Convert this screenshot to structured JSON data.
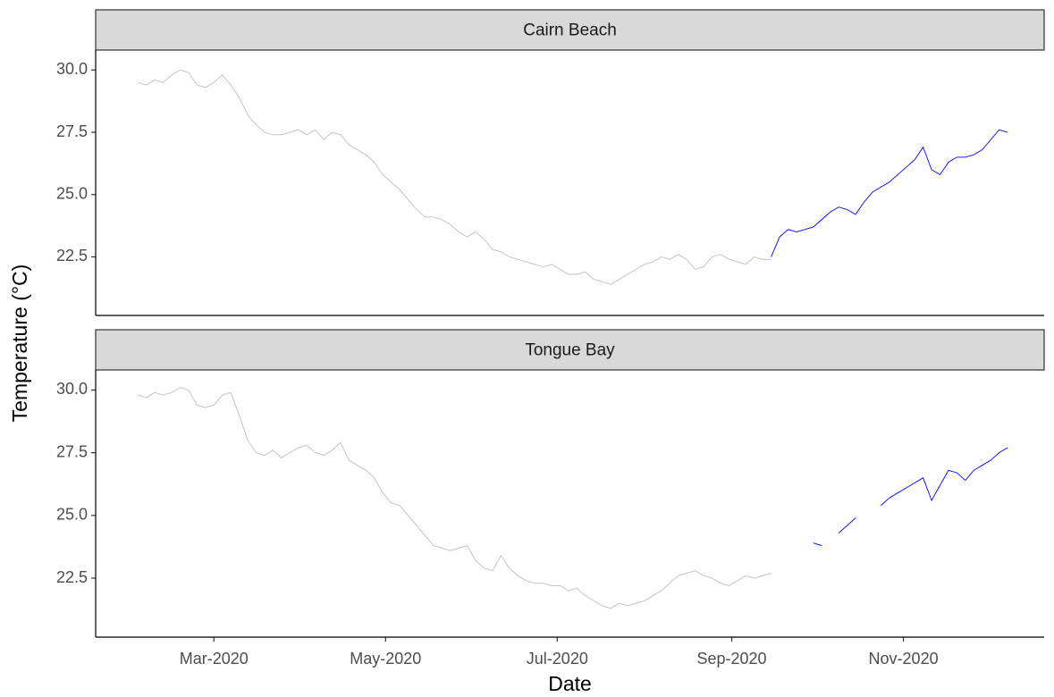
{
  "chart_data": [
    {
      "type": "line",
      "title": "Cairn Beach",
      "ylabel": "Temperature (°C)",
      "xlim": [
        19,
        356
      ],
      "ylim": [
        20.15,
        30.8
      ],
      "yticks": [
        {
          "value": 30,
          "label": "30.0"
        },
        27.5,
        {
          "value": 25,
          "label": "25.0"
        },
        22.5
      ],
      "x": [
        34,
        37,
        40,
        43,
        46,
        49,
        52,
        55,
        58,
        61,
        64,
        67,
        70,
        73,
        76,
        79,
        82,
        85,
        88,
        91,
        94,
        97,
        100,
        103,
        106,
        109,
        112,
        115,
        118,
        121,
        124,
        127,
        130,
        133,
        136,
        139,
        142,
        145,
        148,
        151,
        154,
        157,
        160,
        163,
        166,
        169,
        172,
        175,
        178,
        181,
        184,
        187,
        190,
        193,
        196,
        199,
        202,
        205,
        208,
        211,
        214,
        217,
        220,
        223,
        226,
        229,
        232,
        235,
        238,
        241,
        244,
        247,
        250,
        253,
        256,
        259,
        262,
        265,
        268,
        271,
        274,
        277,
        280,
        283,
        286,
        289,
        292,
        295,
        298,
        301,
        304,
        307,
        310,
        313,
        316,
        319,
        322,
        325,
        328,
        331,
        334,
        337,
        340,
        343
      ],
      "series": [
        {
          "color": "#bebebe",
          "values": [
            29.5,
            29.4,
            29.6,
            29.5,
            29.8,
            30.0,
            29.9,
            29.4,
            29.3,
            29.5,
            29.8,
            29.4,
            28.9,
            28.2,
            27.8,
            27.5,
            27.4,
            27.4,
            27.5,
            27.6,
            27.4,
            27.6,
            27.2,
            27.5,
            27.4,
            27.0,
            26.8,
            26.6,
            26.3,
            25.8,
            25.5,
            25.2,
            24.8,
            24.4,
            24.1,
            24.1,
            24.0,
            23.8,
            23.5,
            23.3,
            23.5,
            23.2,
            22.8,
            22.7,
            22.5,
            22.4,
            22.3,
            22.2,
            22.1,
            22.2,
            22.0,
            21.8,
            21.8,
            21.9,
            21.6,
            21.5,
            21.4,
            21.6,
            21.8,
            22.0,
            22.2,
            22.3,
            22.5,
            22.4,
            22.6,
            22.4,
            22.0,
            22.1,
            22.5,
            22.6,
            22.4,
            22.3,
            22.2,
            22.5,
            22.4,
            22.4,
            null,
            null,
            null,
            null,
            null,
            null,
            null,
            null,
            null,
            null,
            null,
            null,
            null,
            null,
            null,
            null,
            null,
            null,
            null,
            null,
            null,
            null,
            null,
            null,
            null,
            null,
            null,
            null
          ]
        },
        {
          "color": "#0000ff",
          "values": [
            null,
            null,
            null,
            null,
            null,
            null,
            null,
            null,
            null,
            null,
            null,
            null,
            null,
            null,
            null,
            null,
            null,
            null,
            null,
            null,
            null,
            null,
            null,
            null,
            null,
            null,
            null,
            null,
            null,
            null,
            null,
            null,
            null,
            null,
            null,
            null,
            null,
            null,
            null,
            null,
            null,
            null,
            null,
            null,
            null,
            null,
            null,
            null,
            null,
            null,
            null,
            null,
            null,
            null,
            null,
            null,
            null,
            null,
            null,
            null,
            null,
            null,
            null,
            null,
            null,
            null,
            null,
            null,
            null,
            null,
            null,
            null,
            null,
            null,
            null,
            22.5,
            23.3,
            23.6,
            23.5,
            23.6,
            23.7,
            24.0,
            24.3,
            24.5,
            24.4,
            24.2,
            24.7,
            25.1,
            25.3,
            25.5,
            25.8,
            26.1,
            26.4,
            26.9,
            26.0,
            25.8,
            26.3,
            26.5,
            26.5,
            26.6,
            26.8,
            27.2,
            27.6,
            27.5
          ]
        }
      ]
    },
    {
      "type": "line",
      "title": "Tongue Bay",
      "xlabel": "Date",
      "xlim": [
        19,
        356
      ],
      "ylim": [
        20.15,
        30.8
      ],
      "xticks": [
        {
          "value": 61,
          "label": "Mar-2020"
        },
        {
          "value": 122,
          "label": "May-2020"
        },
        {
          "value": 183,
          "label": "Jul-2020"
        },
        {
          "value": 245,
          "label": "Sep-2020"
        },
        {
          "value": 306,
          "label": "Nov-2020"
        }
      ],
      "yticks": [
        {
          "value": 30,
          "label": "30.0"
        },
        27.5,
        {
          "value": 25,
          "label": "25.0"
        },
        22.5
      ],
      "x": [
        34,
        37,
        40,
        43,
        46,
        49,
        52,
        55,
        58,
        61,
        64,
        67,
        70,
        73,
        76,
        79,
        82,
        85,
        88,
        91,
        94,
        97,
        100,
        103,
        106,
        109,
        112,
        115,
        118,
        121,
        124,
        127,
        130,
        133,
        136,
        139,
        142,
        145,
        148,
        151,
        154,
        157,
        160,
        163,
        166,
        169,
        172,
        175,
        178,
        181,
        184,
        187,
        190,
        193,
        196,
        199,
        202,
        205,
        208,
        211,
        214,
        217,
        220,
        223,
        226,
        229,
        232,
        235,
        238,
        241,
        244,
        247,
        250,
        253,
        256,
        259,
        262,
        265,
        268,
        271,
        274,
        277,
        280,
        283,
        286,
        289,
        292,
        295,
        298,
        301,
        304,
        307,
        310,
        313,
        316,
        319,
        322,
        325,
        328,
        331,
        334,
        337,
        340,
        343
      ],
      "series": [
        {
          "color": "#bebebe",
          "values": [
            29.8,
            29.7,
            29.9,
            29.8,
            29.9,
            30.1,
            30.0,
            29.4,
            29.3,
            29.4,
            29.8,
            29.9,
            29.0,
            28.0,
            27.5,
            27.4,
            27.6,
            27.3,
            27.5,
            27.7,
            27.8,
            27.5,
            27.4,
            27.6,
            27.9,
            27.2,
            27.0,
            26.8,
            26.5,
            25.9,
            25.5,
            25.4,
            25.0,
            24.6,
            24.2,
            23.8,
            23.7,
            23.6,
            23.7,
            23.8,
            23.2,
            22.9,
            22.8,
            23.4,
            22.9,
            22.6,
            22.4,
            22.3,
            22.3,
            22.2,
            22.2,
            22.0,
            22.1,
            21.8,
            21.6,
            21.4,
            21.3,
            21.5,
            21.4,
            21.5,
            21.6,
            21.8,
            22.0,
            22.3,
            22.6,
            22.7,
            22.8,
            22.6,
            22.5,
            22.3,
            22.2,
            22.4,
            22.6,
            22.5,
            22.6,
            22.7,
            null,
            null,
            null,
            null,
            null,
            null,
            null,
            null,
            null,
            null,
            null,
            null,
            null,
            null,
            null,
            null,
            null,
            null,
            null,
            null,
            null,
            null,
            null,
            null,
            null,
            null,
            null,
            null
          ]
        },
        {
          "color": "#0000ff",
          "values": [
            null,
            null,
            null,
            null,
            null,
            null,
            null,
            null,
            null,
            null,
            null,
            null,
            null,
            null,
            null,
            null,
            null,
            null,
            null,
            null,
            null,
            null,
            null,
            null,
            null,
            null,
            null,
            null,
            null,
            null,
            null,
            null,
            null,
            null,
            null,
            null,
            null,
            null,
            null,
            null,
            null,
            null,
            null,
            null,
            null,
            null,
            null,
            null,
            null,
            null,
            null,
            null,
            null,
            null,
            null,
            null,
            null,
            null,
            null,
            null,
            null,
            null,
            null,
            null,
            null,
            null,
            null,
            null,
            null,
            null,
            null,
            null,
            null,
            null,
            null,
            null,
            null,
            null,
            null,
            null,
            23.9,
            23.8,
            null,
            24.3,
            24.6,
            24.9,
            null,
            null,
            25.4,
            25.7,
            25.9,
            26.1,
            26.3,
            26.5,
            25.6,
            26.2,
            26.8,
            26.7,
            26.4,
            26.8,
            27.0,
            27.2,
            27.5,
            27.7
          ]
        }
      ]
    }
  ]
}
